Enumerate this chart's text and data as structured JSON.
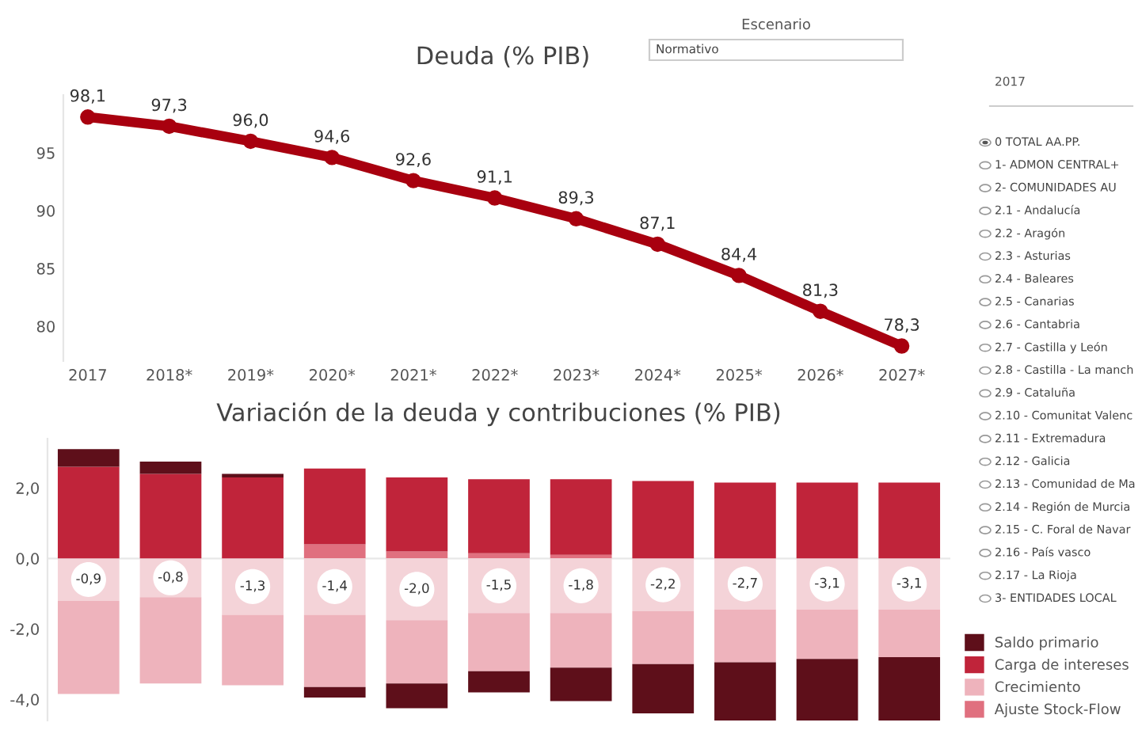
{
  "chart_data": [
    {
      "type": "line",
      "title": "Deuda (% PIB)",
      "categories": [
        "2017",
        "2018*",
        "2019*",
        "2020*",
        "2021*",
        "2022*",
        "2023*",
        "2024*",
        "2025*",
        "2026*",
        "2027*"
      ],
      "series": [
        {
          "color": "#a8000f",
          "values": [
            98.1,
            97.3,
            96.0,
            94.6,
            92.6,
            91.1,
            89.3,
            87.1,
            84.4,
            81.3,
            78.3
          ]
        }
      ],
      "value_labels": [
        "98,1",
        "97,3",
        "96,0",
        "94,6",
        "92,6",
        "91,1",
        "89,3",
        "87,1",
        "84,4",
        "81,3",
        "78,3"
      ],
      "ylim": [
        77,
        100
      ],
      "yticks": [
        80,
        85,
        90,
        95
      ],
      "marker": "circle",
      "line_style": "solid",
      "grid": false,
      "legend": false
    },
    {
      "type": "bar",
      "title": "Variación de la deuda y contribuciones (% PIB)",
      "stacked": true,
      "categories": [
        null,
        null,
        null,
        null,
        null,
        null,
        null,
        null,
        null,
        null,
        null
      ],
      "series": [
        {
          "name": "Ajuste Stock-Flow",
          "color": "#e0707f",
          "values": [
            0,
            0,
            0,
            0.4,
            0.2,
            0.15,
            0.1,
            0,
            0,
            0,
            0
          ]
        },
        {
          "color": "#f4d3d8",
          "values": [
            -1.2,
            -1.1,
            -1.6,
            -1.6,
            -1.75,
            -1.55,
            -1.55,
            -1.5,
            -1.45,
            -1.45,
            -1.45
          ]
        },
        {
          "name": "Crecimiento",
          "color": "#eeb3bc",
          "values": [
            -2.65,
            -2.45,
            -2.0,
            -2.05,
            -1.8,
            -1.65,
            -1.55,
            -1.5,
            -1.5,
            -1.4,
            -1.35
          ]
        },
        {
          "name": "Carga de intereses",
          "color": "#c0243a",
          "values": [
            2.6,
            2.4,
            2.3,
            2.15,
            2.1,
            2.1,
            2.15,
            2.2,
            2.15,
            2.15,
            2.15
          ]
        },
        {
          "name": "Saldo primario",
          "color": "#5e0f1a",
          "values": [
            0.5,
            0.35,
            0.1,
            -0.3,
            -0.7,
            -0.6,
            -0.95,
            -1.4,
            -1.9,
            -2.35,
            -2.5
          ]
        }
      ],
      "totals": [
        "-0,9",
        "-0,8",
        "-1,3",
        "-1,4",
        "-2,0",
        "-1,5",
        "-1,8",
        "-2,2",
        "-2,7",
        "-3,1",
        "-3,1"
      ],
      "ylim": [
        -4.6,
        3.4
      ],
      "yticks": [
        {
          "value": -4,
          "label": "-4,0"
        },
        {
          "value": -2,
          "label": "-2,0"
        },
        {
          "value": 0,
          "label": "0,0"
        },
        {
          "value": 2,
          "label": "2,0"
        }
      ],
      "ref_lines": [
        {
          "axis": "y",
          "value": 0,
          "color": "#e8e8e8"
        }
      ],
      "tick_labels": "y",
      "grid": false,
      "legend": "bottom right"
    },
    {
      "type": "other",
      "annotations": [
        "Escenario",
        "Normativo",
        "2017",
        "0 TOTAL AA.PP.",
        "1- ADMON CENTRAL+",
        "2- COMUNIDADES AU",
        "2.1 - Andalucía",
        "2.2 - Aragón",
        "2.3 - Asturias",
        "2.4 - Baleares",
        "2.5 - Canarias",
        "2.6 - Cantabria",
        "2.7 - Castilla y León",
        "2.8 - Castilla - La manch",
        "2.9 - Cataluña",
        "2.10 - Comunitat Valenc",
        "2.11 - Extremadura",
        "2.12 - Galicia",
        "2.13 - Comunidad de Ma",
        "2.14 - Región de Murcia",
        "2.15 - C. Foral de Navar",
        "2.16 - País vasco",
        "2.17 - La Rioja",
        "3- ENTIDADES LOCAL"
      ]
    }
  ]
}
